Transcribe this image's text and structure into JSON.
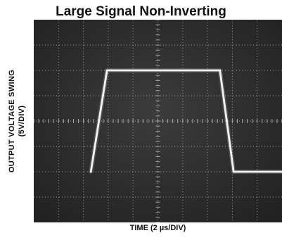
{
  "chart_data": {
    "type": "line",
    "title": "Large Signal Non-Inverting",
    "ylabel_line1": "OUTPUT VOLTAGE SWING",
    "ylabel_line2": "(5V/DIV)",
    "xlabel": "TIME (2 µs/DIV)",
    "x_unit": "div",
    "y_unit": "div",
    "xlim": [
      0,
      10
    ],
    "ylim": [
      -4,
      4
    ],
    "grid": true,
    "grid_divisions_x": 10,
    "grid_divisions_y": 8,
    "series": [
      {
        "x": [
          2.3,
          2.95,
          7.5,
          8.05,
          10
        ],
        "y": [
          -2.0,
          2.0,
          2.0,
          -2.0,
          -2.0
        ]
      }
    ],
    "colors": {
      "screen": "#2f2f2f",
      "grid": "#b9b9b9",
      "trace": "#f2f2f2"
    }
  }
}
